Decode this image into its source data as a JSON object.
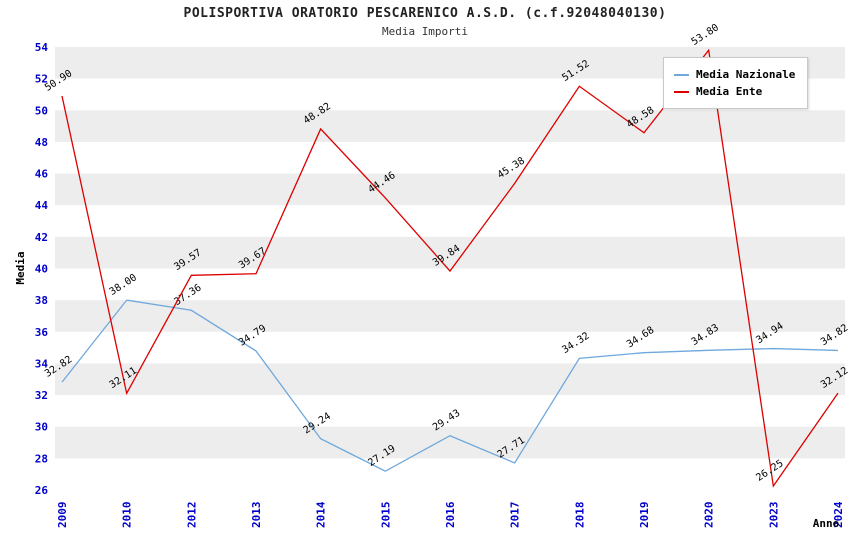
{
  "chart_data": {
    "type": "line",
    "title": "POLISPORTIVA ORATORIO PESCARENICO A.S.D. (c.f.92048040130)",
    "subtitle": "Media Importi",
    "xlabel": "Anno",
    "ylabel": "Media",
    "ylim": [
      26,
      54
    ],
    "ytick_step": 2,
    "grid_bands": true,
    "band_color": "#ededed",
    "tick_label_color": "#0000cc",
    "legend_position": "top-right",
    "categories": [
      "2009",
      "2010",
      "2012",
      "2013",
      "2014",
      "2015",
      "2016",
      "2017",
      "2018",
      "2019",
      "2020",
      "2023",
      "2024"
    ],
    "series": [
      {
        "name": "Media Nazionale",
        "color": "#6fa8dc",
        "values": [
          32.82,
          38.0,
          37.36,
          34.79,
          29.24,
          27.19,
          29.43,
          27.71,
          34.32,
          34.68,
          34.83,
          34.94,
          34.82
        ]
      },
      {
        "name": "Media Ente",
        "color": "#dd0000",
        "values": [
          50.9,
          32.11,
          39.57,
          39.67,
          48.82,
          44.46,
          39.84,
          45.38,
          51.52,
          48.58,
          53.8,
          26.25,
          32.12
        ]
      }
    ]
  }
}
